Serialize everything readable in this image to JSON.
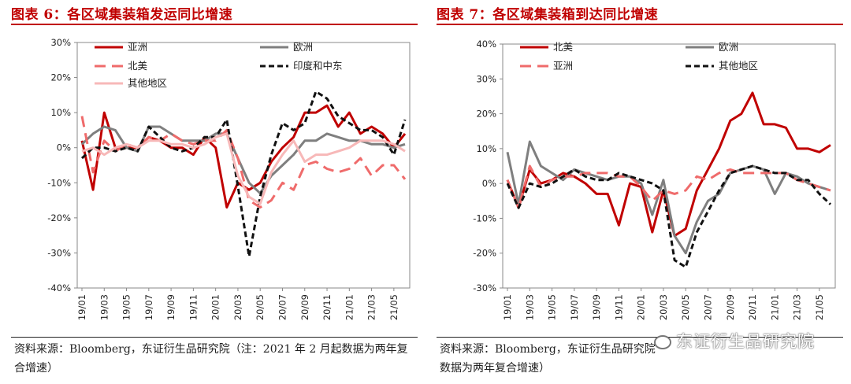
{
  "charts": [
    {
      "title": "图表 6：各区域集装箱发运同比增速",
      "source": "资料来源：Bloomberg，东证衍生品研究院（注：2021 年 2 月起数据为两年复合增速）"
    },
    {
      "title": "图表 7：各区域集装箱到达同比增速",
      "source": "资料来源：Bloomberg，东证衍生品研究院",
      "watermark": "东证衍生品研究院",
      "extra_source_line": "数据为两年复合增速）"
    }
  ],
  "chart_data": [
    {
      "type": "line",
      "title": "图表 6：各区域集装箱发运同比增速",
      "ylim": [
        -40,
        30
      ],
      "yticks": [
        -40,
        -30,
        -20,
        -10,
        0,
        10,
        20,
        30
      ],
      "y_unit": "%",
      "grid": false,
      "legend": "top, two columns",
      "x": [
        "19/01",
        "19/02",
        "19/03",
        "19/04",
        "19/05",
        "19/06",
        "19/07",
        "19/08",
        "19/09",
        "19/10",
        "19/11",
        "19/12",
        "20/01",
        "20/02",
        "20/03",
        "20/04",
        "20/05",
        "20/06",
        "20/07",
        "20/08",
        "20/09",
        "20/10",
        "20/11",
        "20/12",
        "21/01",
        "21/02",
        "21/03",
        "21/04",
        "21/05",
        "21/06"
      ],
      "xticks": [
        "19/01",
        "19/03",
        "19/05",
        "19/07",
        "19/09",
        "19/11",
        "20/01",
        "20/03",
        "20/05",
        "20/07",
        "20/09",
        "20/11",
        "21/01",
        "21/03",
        "21/05"
      ],
      "series": [
        {
          "name": "亚洲",
          "color": "#c00000",
          "dash": "solid",
          "width": 3,
          "values": [
            2,
            -12,
            10,
            0,
            0,
            0,
            3,
            2,
            0,
            0,
            -2,
            3,
            0,
            -17,
            -10,
            -12,
            -10,
            -4,
            0,
            3,
            10,
            10,
            12,
            6,
            10,
            4,
            6,
            4,
            0,
            4
          ]
        },
        {
          "name": "欧洲",
          "color": "#7f7f7f",
          "dash": "solid",
          "width": 3,
          "values": [
            1,
            4,
            6,
            5,
            0,
            -1,
            6,
            6,
            4,
            2,
            2,
            2,
            4,
            4,
            -3,
            -10,
            -13,
            -8,
            -5,
            -2,
            2,
            2,
            4,
            3,
            2,
            2,
            1,
            1,
            0,
            1
          ]
        },
        {
          "name": "北美",
          "color": "#ef6b6b",
          "dash": "dash",
          "width": 3,
          "values": [
            9,
            -7,
            2,
            -1,
            1,
            0,
            3,
            2,
            4,
            2,
            1,
            2,
            2,
            5,
            -3,
            -15,
            -17,
            -15,
            -10,
            -12,
            -5,
            -4,
            -6,
            -7,
            -6,
            -3,
            -8,
            -5,
            -5,
            -9
          ]
        },
        {
          "name": "印度和中东",
          "color": "#111111",
          "dash": "dotted",
          "width": 3,
          "values": [
            -3,
            0,
            0,
            -1,
            0,
            -1,
            6,
            3,
            0,
            -1,
            0,
            3,
            3,
            8,
            -11,
            -31,
            -14,
            -2,
            7,
            5,
            7,
            16,
            14,
            9,
            7,
            5,
            5,
            3,
            -2,
            8
          ]
        },
        {
          "name": "其他地区",
          "color": "#f7b8b8",
          "dash": "solid",
          "width": 3,
          "values": [
            -1,
            0,
            -2,
            0,
            1,
            0,
            2,
            2,
            1,
            1,
            0,
            1,
            3,
            4,
            -8,
            -14,
            -16,
            -7,
            -2,
            2,
            -4,
            -2,
            -2,
            -1,
            0,
            2,
            2,
            2,
            1,
            -1
          ]
        }
      ]
    },
    {
      "type": "line",
      "title": "图表 7：各区域集装箱到达同比增速",
      "ylim": [
        -30,
        40
      ],
      "yticks": [
        -30,
        -20,
        -10,
        0,
        10,
        20,
        30,
        40
      ],
      "y_unit": "%",
      "grid": false,
      "legend": "top, two columns",
      "x": [
        "19/01",
        "19/02",
        "19/03",
        "19/04",
        "19/05",
        "19/06",
        "19/07",
        "19/08",
        "19/09",
        "19/10",
        "19/11",
        "19/12",
        "20/01",
        "20/02",
        "20/03",
        "20/04",
        "20/05",
        "20/06",
        "20/07",
        "20/08",
        "20/09",
        "20/10",
        "20/11",
        "20/12",
        "21/01",
        "21/02",
        "21/03",
        "21/04",
        "21/05",
        "21/06"
      ],
      "xticks": [
        "19/01",
        "19/03",
        "19/05",
        "19/07",
        "19/09",
        "19/11",
        "20/01",
        "20/03",
        "20/05",
        "20/07",
        "20/09",
        "20/11",
        "21/01",
        "21/03",
        "21/05"
      ],
      "series": [
        {
          "name": "北美",
          "color": "#c00000",
          "dash": "solid",
          "width": 3,
          "values": [
            1,
            -7,
            4,
            0,
            1,
            3,
            2,
            0,
            -3,
            -3,
            -12,
            0,
            -1,
            -14,
            -2,
            -15,
            -13,
            -2,
            4,
            10,
            18,
            20,
            26,
            17,
            17,
            16,
            10,
            10,
            9,
            11
          ]
        },
        {
          "name": "欧洲",
          "color": "#7f7f7f",
          "dash": "solid",
          "width": 3,
          "values": [
            9,
            -6,
            12,
            5,
            3,
            1,
            4,
            3,
            2,
            1,
            2,
            2,
            0,
            -9,
            1,
            -15,
            -20,
            -11,
            -5,
            -3,
            3,
            4,
            5,
            4,
            -3,
            3,
            2,
            0,
            -1,
            -2
          ]
        },
        {
          "name": "亚洲",
          "color": "#ef6b6b",
          "dash": "dash",
          "width": 3,
          "values": [
            1,
            -7,
            5,
            -1,
            1,
            2,
            2,
            3,
            3,
            3,
            2,
            2,
            -1,
            -5,
            -2,
            -3,
            -2,
            2,
            1,
            3,
            4,
            3,
            3,
            3,
            3,
            3,
            1,
            0,
            -1,
            -2
          ]
        },
        {
          "name": "其他地区",
          "color": "#111111",
          "dash": "dotted",
          "width": 3,
          "values": [
            0,
            -7,
            0,
            -1,
            0,
            2,
            4,
            2,
            1,
            1,
            3,
            2,
            1,
            0,
            -2,
            -22,
            -24,
            -14,
            -8,
            -2,
            3,
            4,
            5,
            4,
            3,
            3,
            1,
            1,
            -3,
            -6
          ]
        }
      ]
    }
  ]
}
